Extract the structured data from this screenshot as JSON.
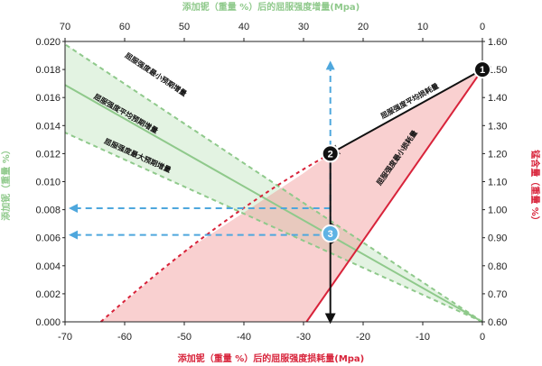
{
  "chart_data": {
    "type": "line",
    "axes": {
      "bottom": {
        "label": "添加铌（重量 %）后的屈服强度损耗量(Mpa)",
        "range": [
          -70,
          0
        ],
        "ticks": [
          "-70",
          "-60",
          "-50",
          "-40",
          "-30",
          "-20",
          "-10",
          "0"
        ],
        "color": "#d8233a"
      },
      "top": {
        "label": "添加铌（重量 %）后的屈服强度增量(Mpa)",
        "range": [
          70,
          0
        ],
        "ticks": [
          "70",
          "60",
          "50",
          "40",
          "30",
          "20",
          "10",
          "0"
        ],
        "color": "#8fc98b"
      },
      "left": {
        "label": "添加铌（重量 %）",
        "range": [
          0,
          0.02
        ],
        "ticks": [
          "0.000",
          "0.002",
          "0.004",
          "0.006",
          "0.008",
          "0.010",
          "0.012",
          "0.014",
          "0.016",
          "0.018",
          "0.020"
        ],
        "color": "#8fc98b"
      },
      "right": {
        "label": "锰含量（重量 %）",
        "range": [
          0.6,
          1.6
        ],
        "ticks": [
          "0.60",
          "0.70",
          "0.80",
          "0.90",
          "1.00",
          "1.10",
          "1.20",
          "1.30",
          "1.40",
          "1.50",
          "1.60"
        ],
        "color": "#d8233a"
      }
    },
    "series": [
      {
        "name": "屈服强度平均预期增量",
        "style": "green-solid",
        "x_top": [
          0,
          70
        ],
        "y_left": [
          0.0,
          0.0169
        ]
      },
      {
        "name": "屈服强度最小预期增量",
        "style": "green-dashed",
        "x_top": [
          0,
          70
        ],
        "y_left": [
          0.0,
          0.0198
        ]
      },
      {
        "name": "屈服强度最大预期增量",
        "style": "green-dashed",
        "x_top": [
          0,
          70
        ],
        "y_left": [
          0.0,
          0.0135
        ]
      },
      {
        "name": "屈服强度最小损耗量",
        "style": "red-solid",
        "x_bottom": [
          -29.5,
          0
        ],
        "y_right": [
          0.6,
          1.5
        ]
      },
      {
        "name": "",
        "style": "red-dashed",
        "x_bottom": [
          -64,
          -50,
          -40,
          -30,
          -25.5
        ],
        "y_right": [
          0.6,
          0.85,
          0.99,
          1.13,
          1.2
        ]
      },
      {
        "name": "屈服强度平均损耗量",
        "style": "black-arrow",
        "x_bottom": [
          0,
          -25.5
        ],
        "y_right": [
          1.5,
          1.2
        ]
      }
    ],
    "guides": [
      {
        "style": "blue-dashed-arrow",
        "from_x_bottom": -25.5,
        "from_y_right": 0.915,
        "to_y_left": 0.0185
      },
      {
        "style": "blue-dashed-arrow",
        "from_x_bottom": -25.5,
        "from_y_left": 0.0081,
        "to_x_bottom": -70
      },
      {
        "style": "blue-dashed-arrow",
        "from_x_bottom": -25.5,
        "from_y_left": 0.0062,
        "to_x_bottom": -70
      },
      {
        "style": "black-arrow",
        "from_x_bottom": -25.5,
        "from_y_right": 1.2,
        "to_y_right": 0.6
      }
    ],
    "markers": [
      {
        "label": "1",
        "x_bottom": 0,
        "y_right": 1.5,
        "color": "#111111"
      },
      {
        "label": "2",
        "x_bottom": -25.5,
        "y_right": 1.2,
        "color": "#111111"
      },
      {
        "label": "3",
        "x_bottom": -25.5,
        "y_right": 0.915,
        "color": "#5fb3e4"
      }
    ],
    "annotations": [
      {
        "text": "屈服强度最小预期增量",
        "x_top": 55,
        "y_left": 0.0175
      },
      {
        "text": "屈服强度平均预期增量",
        "x_top": 60,
        "y_left": 0.0147
      },
      {
        "text": "屈服强度最大预期增量",
        "x_top": 58,
        "y_left": 0.0117
      },
      {
        "text": "屈服强度平均损耗量",
        "x_bottom": -12,
        "y_right": 1.38
      },
      {
        "text": "屈服强度最小损耗量",
        "x_bottom": -14,
        "y_right": 1.18
      }
    ],
    "grid": false,
    "legend": "none"
  }
}
